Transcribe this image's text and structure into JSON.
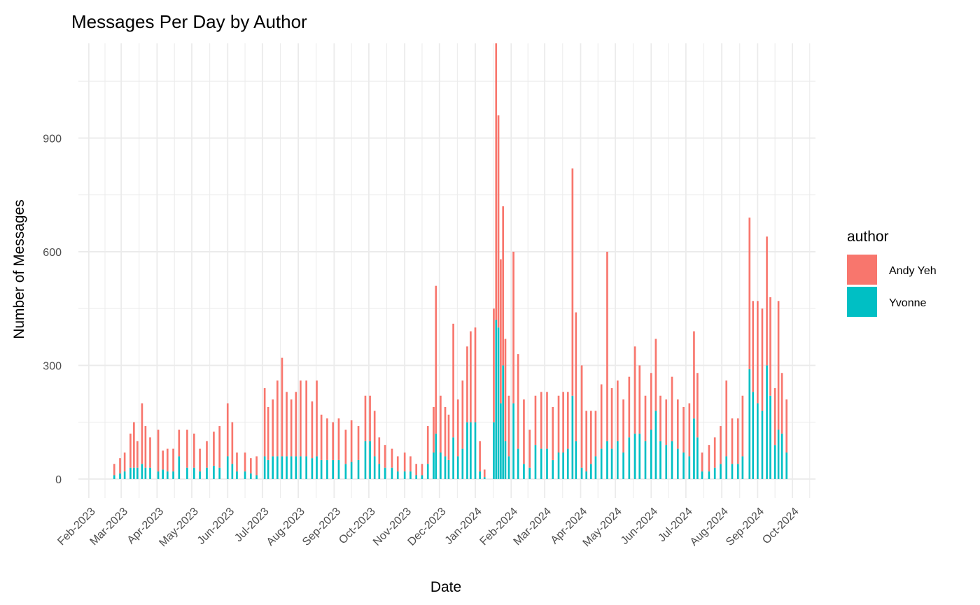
{
  "chart_data": {
    "type": "bar",
    "stacked": true,
    "title": "Messages Per Day by Author",
    "xlabel": "Date",
    "ylabel": "Number of Messages",
    "ylim": [
      -50,
      1150
    ],
    "yticks": [
      0,
      300,
      600,
      900
    ],
    "xlim": [
      "2023-01-23",
      "2024-10-21"
    ],
    "xticks": [
      "2023-02-01",
      "2023-03-01",
      "2023-04-01",
      "2023-05-01",
      "2023-06-01",
      "2023-07-01",
      "2023-08-01",
      "2023-09-01",
      "2023-10-01",
      "2023-11-01",
      "2023-12-01",
      "2024-01-01",
      "2024-02-01",
      "2024-03-01",
      "2024-04-01",
      "2024-05-01",
      "2024-06-01",
      "2024-07-01",
      "2024-08-01",
      "2024-09-01",
      "2024-10-01"
    ],
    "xtick_labels": [
      "Feb-2023",
      "Mar-2023",
      "Apr-2023",
      "May-2023",
      "Jun-2023",
      "Jul-2023",
      "Aug-2023",
      "Sep-2023",
      "Oct-2023",
      "Nov-2023",
      "Dec-2023",
      "Jan-2024",
      "Feb-2024",
      "Mar-2024",
      "Apr-2024",
      "May-2024",
      "Jun-2024",
      "Jul-2024",
      "Aug-2024",
      "Sep-2024",
      "Oct-2024"
    ],
    "grid": true,
    "legend": {
      "title": "author",
      "position": "right"
    },
    "series": [
      {
        "name": "Andy Yeh",
        "color": "#F8766D",
        "points": [
          [
            "2023-02-23",
            30
          ],
          [
            "2023-02-28",
            40
          ],
          [
            "2023-03-04",
            50
          ],
          [
            "2023-03-09",
            90
          ],
          [
            "2023-03-12",
            120
          ],
          [
            "2023-03-15",
            70
          ],
          [
            "2023-03-19",
            160
          ],
          [
            "2023-03-22",
            110
          ],
          [
            "2023-03-26",
            80
          ],
          [
            "2023-04-02",
            110
          ],
          [
            "2023-04-06",
            50
          ],
          [
            "2023-04-10",
            60
          ],
          [
            "2023-04-15",
            60
          ],
          [
            "2023-04-20",
            70
          ],
          [
            "2023-04-27",
            100
          ],
          [
            "2023-05-03",
            90
          ],
          [
            "2023-05-08",
            60
          ],
          [
            "2023-05-14",
            70
          ],
          [
            "2023-05-20",
            90
          ],
          [
            "2023-05-25",
            110
          ],
          [
            "2023-06-01",
            140
          ],
          [
            "2023-06-05",
            110
          ],
          [
            "2023-06-09",
            50
          ],
          [
            "2023-06-16",
            50
          ],
          [
            "2023-06-21",
            40
          ],
          [
            "2023-06-26",
            50
          ],
          [
            "2023-07-03",
            180
          ],
          [
            "2023-07-06",
            140
          ],
          [
            "2023-07-10",
            150
          ],
          [
            "2023-07-14",
            200
          ],
          [
            "2023-07-18",
            260
          ],
          [
            "2023-07-22",
            170
          ],
          [
            "2023-07-26",
            150
          ],
          [
            "2023-07-30",
            170
          ],
          [
            "2023-08-03",
            200
          ],
          [
            "2023-08-08",
            200
          ],
          [
            "2023-08-13",
            150
          ],
          [
            "2023-08-17",
            200
          ],
          [
            "2023-08-21",
            120
          ],
          [
            "2023-08-26",
            110
          ],
          [
            "2023-08-31",
            100
          ],
          [
            "2023-09-05",
            110
          ],
          [
            "2023-09-11",
            90
          ],
          [
            "2023-09-16",
            110
          ],
          [
            "2023-09-22",
            90
          ],
          [
            "2023-09-28",
            120
          ],
          [
            "2023-10-02",
            120
          ],
          [
            "2023-10-06",
            120
          ],
          [
            "2023-10-10",
            70
          ],
          [
            "2023-10-15",
            60
          ],
          [
            "2023-10-21",
            50
          ],
          [
            "2023-10-26",
            40
          ],
          [
            "2023-11-01",
            50
          ],
          [
            "2023-11-06",
            40
          ],
          [
            "2023-11-11",
            30
          ],
          [
            "2023-11-16",
            30
          ],
          [
            "2023-11-21",
            100
          ],
          [
            "2023-11-26",
            120
          ],
          [
            "2023-11-28",
            390
          ],
          [
            "2023-12-02",
            150
          ],
          [
            "2023-12-06",
            130
          ],
          [
            "2023-12-09",
            120
          ],
          [
            "2023-12-13",
            300
          ],
          [
            "2023-12-17",
            150
          ],
          [
            "2023-12-21",
            180
          ],
          [
            "2023-12-25",
            200
          ],
          [
            "2023-12-28",
            240
          ],
          [
            "2024-01-01",
            250
          ],
          [
            "2024-01-05",
            80
          ],
          [
            "2024-01-09",
            20
          ],
          [
            "2024-01-17",
            300
          ],
          [
            "2024-01-19",
            730
          ],
          [
            "2024-01-21",
            560
          ],
          [
            "2024-01-23",
            380
          ],
          [
            "2024-01-25",
            420
          ],
          [
            "2024-01-27",
            270
          ],
          [
            "2024-01-30",
            160
          ],
          [
            "2024-02-03",
            400
          ],
          [
            "2024-02-07",
            250
          ],
          [
            "2024-02-12",
            170
          ],
          [
            "2024-02-17",
            100
          ],
          [
            "2024-02-22",
            130
          ],
          [
            "2024-02-27",
            150
          ],
          [
            "2024-03-03",
            150
          ],
          [
            "2024-03-08",
            140
          ],
          [
            "2024-03-13",
            150
          ],
          [
            "2024-03-17",
            160
          ],
          [
            "2024-03-21",
            150
          ],
          [
            "2024-03-25",
            600
          ],
          [
            "2024-03-28",
            340
          ],
          [
            "2024-04-02",
            270
          ],
          [
            "2024-04-06",
            160
          ],
          [
            "2024-04-10",
            140
          ],
          [
            "2024-04-14",
            120
          ],
          [
            "2024-04-19",
            170
          ],
          [
            "2024-04-24",
            500
          ],
          [
            "2024-04-28",
            160
          ],
          [
            "2024-05-03",
            160
          ],
          [
            "2024-05-08",
            140
          ],
          [
            "2024-05-13",
            160
          ],
          [
            "2024-05-18",
            230
          ],
          [
            "2024-05-22",
            180
          ],
          [
            "2024-05-27",
            120
          ],
          [
            "2024-06-01",
            150
          ],
          [
            "2024-06-05",
            190
          ],
          [
            "2024-06-09",
            120
          ],
          [
            "2024-06-14",
            120
          ],
          [
            "2024-06-19",
            170
          ],
          [
            "2024-06-24",
            130
          ],
          [
            "2024-06-29",
            120
          ],
          [
            "2024-07-04",
            140
          ],
          [
            "2024-07-08",
            230
          ],
          [
            "2024-07-11",
            170
          ],
          [
            "2024-07-15",
            50
          ],
          [
            "2024-07-21",
            70
          ],
          [
            "2024-07-26",
            80
          ],
          [
            "2024-07-31",
            100
          ],
          [
            "2024-08-05",
            200
          ],
          [
            "2024-08-10",
            120
          ],
          [
            "2024-08-15",
            120
          ],
          [
            "2024-08-19",
            160
          ],
          [
            "2024-08-25",
            400
          ],
          [
            "2024-08-28",
            240
          ],
          [
            "2024-09-01",
            270
          ],
          [
            "2024-09-05",
            270
          ],
          [
            "2024-09-09",
            340
          ],
          [
            "2024-09-12",
            260
          ],
          [
            "2024-09-16",
            150
          ],
          [
            "2024-09-19",
            340
          ],
          [
            "2024-09-22",
            160
          ],
          [
            "2024-09-26",
            140
          ]
        ]
      },
      {
        "name": "Yvonne",
        "color": "#00BFC4",
        "points": [
          [
            "2023-02-23",
            10
          ],
          [
            "2023-02-28",
            15
          ],
          [
            "2023-03-04",
            20
          ],
          [
            "2023-03-09",
            30
          ],
          [
            "2023-03-12",
            30
          ],
          [
            "2023-03-15",
            30
          ],
          [
            "2023-03-19",
            40
          ],
          [
            "2023-03-22",
            30
          ],
          [
            "2023-03-26",
            30
          ],
          [
            "2023-04-02",
            20
          ],
          [
            "2023-04-06",
            25
          ],
          [
            "2023-04-10",
            20
          ],
          [
            "2023-04-15",
            20
          ],
          [
            "2023-04-20",
            60
          ],
          [
            "2023-04-27",
            30
          ],
          [
            "2023-05-03",
            30
          ],
          [
            "2023-05-08",
            20
          ],
          [
            "2023-05-14",
            30
          ],
          [
            "2023-05-20",
            35
          ],
          [
            "2023-05-25",
            30
          ],
          [
            "2023-06-01",
            60
          ],
          [
            "2023-06-05",
            40
          ],
          [
            "2023-06-09",
            20
          ],
          [
            "2023-06-16",
            20
          ],
          [
            "2023-06-21",
            15
          ],
          [
            "2023-06-26",
            10
          ],
          [
            "2023-07-03",
            60
          ],
          [
            "2023-07-06",
            50
          ],
          [
            "2023-07-10",
            60
          ],
          [
            "2023-07-14",
            60
          ],
          [
            "2023-07-18",
            60
          ],
          [
            "2023-07-22",
            60
          ],
          [
            "2023-07-26",
            60
          ],
          [
            "2023-07-30",
            60
          ],
          [
            "2023-08-03",
            60
          ],
          [
            "2023-08-08",
            60
          ],
          [
            "2023-08-13",
            55
          ],
          [
            "2023-08-17",
            60
          ],
          [
            "2023-08-21",
            50
          ],
          [
            "2023-08-26",
            50
          ],
          [
            "2023-08-31",
            50
          ],
          [
            "2023-09-05",
            50
          ],
          [
            "2023-09-11",
            40
          ],
          [
            "2023-09-16",
            45
          ],
          [
            "2023-09-22",
            50
          ],
          [
            "2023-09-28",
            100
          ],
          [
            "2023-10-02",
            100
          ],
          [
            "2023-10-06",
            60
          ],
          [
            "2023-10-10",
            40
          ],
          [
            "2023-10-15",
            30
          ],
          [
            "2023-10-21",
            30
          ],
          [
            "2023-10-26",
            20
          ],
          [
            "2023-11-01",
            20
          ],
          [
            "2023-11-06",
            20
          ],
          [
            "2023-11-11",
            10
          ],
          [
            "2023-11-16",
            10
          ],
          [
            "2023-11-21",
            40
          ],
          [
            "2023-11-26",
            70
          ],
          [
            "2023-11-28",
            120
          ],
          [
            "2023-12-02",
            70
          ],
          [
            "2023-12-06",
            60
          ],
          [
            "2023-12-09",
            50
          ],
          [
            "2023-12-13",
            110
          ],
          [
            "2023-12-17",
            60
          ],
          [
            "2023-12-21",
            80
          ],
          [
            "2023-12-25",
            150
          ],
          [
            "2023-12-28",
            150
          ],
          [
            "2024-01-01",
            150
          ],
          [
            "2024-01-05",
            20
          ],
          [
            "2024-01-09",
            5
          ],
          [
            "2024-01-17",
            150
          ],
          [
            "2024-01-19",
            420
          ],
          [
            "2024-01-21",
            400
          ],
          [
            "2024-01-23",
            200
          ],
          [
            "2024-01-25",
            300
          ],
          [
            "2024-01-27",
            100
          ],
          [
            "2024-01-30",
            60
          ],
          [
            "2024-02-03",
            200
          ],
          [
            "2024-02-07",
            80
          ],
          [
            "2024-02-12",
            40
          ],
          [
            "2024-02-17",
            30
          ],
          [
            "2024-02-22",
            90
          ],
          [
            "2024-02-27",
            80
          ],
          [
            "2024-03-03",
            80
          ],
          [
            "2024-03-08",
            50
          ],
          [
            "2024-03-13",
            70
          ],
          [
            "2024-03-17",
            70
          ],
          [
            "2024-03-21",
            80
          ],
          [
            "2024-03-25",
            220
          ],
          [
            "2024-03-28",
            100
          ],
          [
            "2024-04-02",
            30
          ],
          [
            "2024-04-06",
            20
          ],
          [
            "2024-04-10",
            40
          ],
          [
            "2024-04-14",
            60
          ],
          [
            "2024-04-19",
            80
          ],
          [
            "2024-04-24",
            100
          ],
          [
            "2024-04-28",
            80
          ],
          [
            "2024-05-03",
            100
          ],
          [
            "2024-05-08",
            70
          ],
          [
            "2024-05-13",
            110
          ],
          [
            "2024-05-18",
            120
          ],
          [
            "2024-05-22",
            120
          ],
          [
            "2024-05-27",
            100
          ],
          [
            "2024-06-01",
            130
          ],
          [
            "2024-06-05",
            180
          ],
          [
            "2024-06-09",
            100
          ],
          [
            "2024-06-14",
            90
          ],
          [
            "2024-06-19",
            100
          ],
          [
            "2024-06-24",
            80
          ],
          [
            "2024-06-29",
            70
          ],
          [
            "2024-07-04",
            60
          ],
          [
            "2024-07-08",
            160
          ],
          [
            "2024-07-11",
            110
          ],
          [
            "2024-07-15",
            20
          ],
          [
            "2024-07-21",
            20
          ],
          [
            "2024-07-26",
            30
          ],
          [
            "2024-07-31",
            40
          ],
          [
            "2024-08-05",
            60
          ],
          [
            "2024-08-10",
            40
          ],
          [
            "2024-08-15",
            40
          ],
          [
            "2024-08-19",
            60
          ],
          [
            "2024-08-25",
            290
          ],
          [
            "2024-08-28",
            230
          ],
          [
            "2024-09-01",
            200
          ],
          [
            "2024-09-05",
            180
          ],
          [
            "2024-09-09",
            300
          ],
          [
            "2024-09-12",
            220
          ],
          [
            "2024-09-16",
            90
          ],
          [
            "2024-09-19",
            130
          ],
          [
            "2024-09-22",
            120
          ],
          [
            "2024-09-26",
            70
          ]
        ]
      }
    ]
  }
}
